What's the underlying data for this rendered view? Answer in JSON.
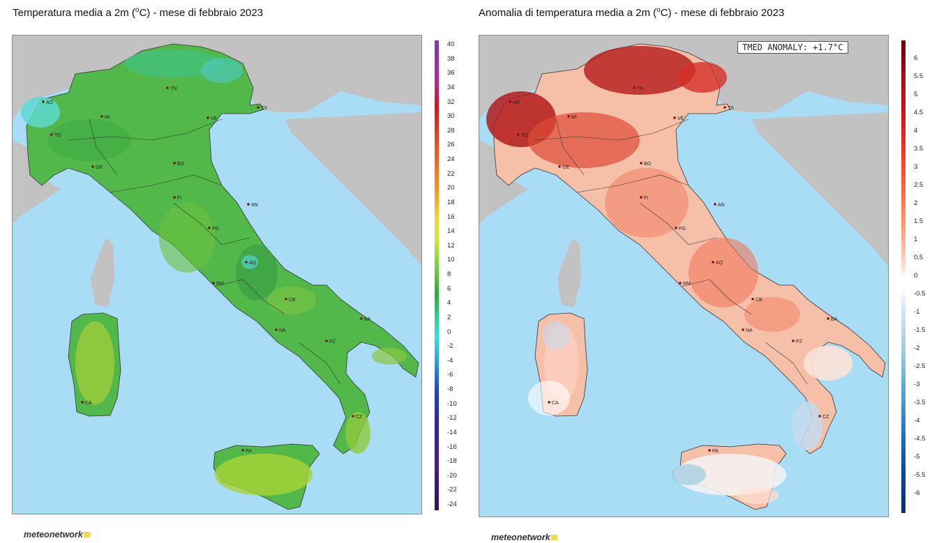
{
  "left_title": "Temperatura media a 2m (°C) - mese di febbraio 2023",
  "left_title_parts": {
    "a": "Temperatura media a 2m (",
    "unit": "o",
    "b": "C) - mese di febbraio 2023"
  },
  "right_title_parts": {
    "a": "Anomalia di temperatura media a 2m (",
    "unit": "o",
    "b": "C) - mese di febbraio 2023"
  },
  "anomaly_box": "TMED ANOMALY: +1.7°C",
  "logo_text": "meteonetwork",
  "colors": {
    "sea": "#a9dcf5",
    "land_other": "#c2c2c2",
    "left_land": "#52b84a",
    "right_land": "#f2a58c"
  },
  "cities": [
    {
      "code": "AO"
    },
    {
      "code": "TN"
    },
    {
      "code": "MI"
    },
    {
      "code": "VE"
    },
    {
      "code": "TS"
    },
    {
      "code": "TO"
    },
    {
      "code": "GE"
    },
    {
      "code": "BO"
    },
    {
      "code": "AN"
    },
    {
      "code": "FI"
    },
    {
      "code": "PG"
    },
    {
      "code": "AQ"
    },
    {
      "code": "RM"
    },
    {
      "code": "CB"
    },
    {
      "code": "BA"
    },
    {
      "code": "NA"
    },
    {
      "code": "PZ"
    },
    {
      "code": "CA"
    },
    {
      "code": "CZ"
    },
    {
      "code": "PA"
    }
  ],
  "left_legend_ticks": [
    "40",
    "38",
    "36",
    "34",
    "32",
    "30",
    "28",
    "26",
    "24",
    "22",
    "20",
    "18",
    "16",
    "14",
    "12",
    "10",
    "8",
    "6",
    "4",
    "2",
    "0",
    "-2",
    "-4",
    "-6",
    "-8",
    "-10",
    "-12",
    "-14",
    "-16",
    "-18",
    "-20",
    "-22",
    "-24"
  ],
  "right_legend_ticks": [
    "6",
    "5.5",
    "5",
    "4.5",
    "4",
    "3.5",
    "3",
    "2.5",
    "2",
    "1.5",
    "1",
    "0.5",
    "0",
    "-0.5",
    "-1",
    "-1.5",
    "-2",
    "-2.5",
    "-3",
    "-3.5",
    "-4",
    "-4.5",
    "-5",
    "-5.5",
    "-6"
  ]
}
